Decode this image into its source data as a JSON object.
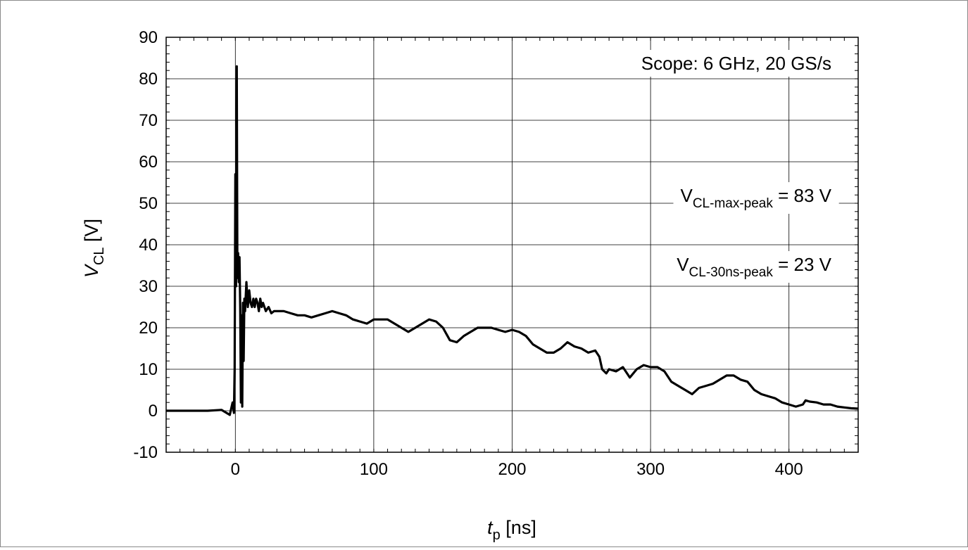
{
  "chart_data": {
    "type": "line",
    "title": "",
    "xlabel": {
      "main": "t",
      "sub": "p",
      "unit": " [ns]"
    },
    "ylabel": {
      "main": "V",
      "sub": "CL",
      "unit": " [V]"
    },
    "xlim": [
      -50,
      450
    ],
    "ylim": [
      -10,
      90
    ],
    "xticks": [
      0,
      100,
      200,
      300,
      400
    ],
    "yticks": [
      -10,
      0,
      10,
      20,
      30,
      40,
      50,
      60,
      70,
      80,
      90
    ],
    "grid": true,
    "annotations": {
      "scope": "Scope: 6 GHz, 20 GS/s",
      "vmax": {
        "main": "V",
        "sub": "CL-max-peak",
        "rest": " = 83 V"
      },
      "v30": {
        "main": "V",
        "sub": "CL-30ns-peak",
        "rest": " = 23 V"
      }
    },
    "series": [
      {
        "color": "#000000",
        "x": [
          -50,
          -40,
          -30,
          -20,
          -10,
          -4,
          -2,
          -1,
          -0.5,
          0,
          0.5,
          1,
          1.5,
          2,
          2.5,
          3,
          3.5,
          4,
          4.5,
          5,
          5.5,
          6,
          6.5,
          7,
          8,
          9,
          10,
          11,
          12,
          13,
          14,
          15,
          16,
          17,
          18,
          19,
          20,
          22,
          24,
          26,
          28,
          30,
          35,
          40,
          45,
          50,
          55,
          60,
          65,
          70,
          75,
          80,
          85,
          90,
          95,
          100,
          105,
          110,
          115,
          120,
          125,
          130,
          135,
          140,
          145,
          150,
          155,
          160,
          165,
          170,
          175,
          180,
          185,
          190,
          195,
          200,
          205,
          210,
          215,
          220,
          225,
          230,
          235,
          240,
          245,
          250,
          255,
          260,
          263,
          265,
          268,
          270,
          275,
          280,
          283,
          285,
          290,
          295,
          300,
          305,
          310,
          315,
          320,
          325,
          330,
          335,
          340,
          345,
          350,
          355,
          360,
          365,
          370,
          375,
          380,
          385,
          390,
          395,
          400,
          405,
          410,
          412,
          415,
          420,
          425,
          430,
          435,
          440,
          445,
          450
        ],
        "y": [
          0,
          0,
          0,
          0,
          0.2,
          -1,
          2,
          -0.5,
          10,
          57,
          30,
          83,
          32,
          38,
          31,
          37,
          25,
          2,
          23,
          1,
          26,
          12,
          27,
          24,
          31,
          25,
          29,
          26,
          25,
          27,
          25,
          27,
          26,
          24,
          27,
          25,
          26,
          24,
          25,
          23.5,
          24,
          24,
          24,
          23.5,
          23,
          23,
          22.5,
          23,
          23.5,
          24,
          23.5,
          23,
          22,
          21.5,
          21,
          22,
          22,
          22,
          21,
          20,
          19,
          20,
          21,
          22,
          21.5,
          20,
          17,
          16.5,
          18,
          19,
          20,
          20,
          20,
          19.5,
          19,
          19.5,
          19,
          18,
          16,
          15,
          14,
          14,
          15,
          16.5,
          15.5,
          15,
          14,
          14.5,
          13,
          10,
          9,
          10,
          9.5,
          10.5,
          9,
          8,
          10,
          11,
          10.5,
          10.5,
          9.5,
          7,
          6,
          5,
          4,
          5.5,
          6,
          6.5,
          7.5,
          8.5,
          8.5,
          7.5,
          7,
          5,
          4,
          3.5,
          3,
          2,
          1.5,
          1,
          1.5,
          2.5,
          2.2,
          2,
          1.5,
          1.5,
          1,
          0.8,
          0.6,
          0.5
        ]
      }
    ]
  }
}
